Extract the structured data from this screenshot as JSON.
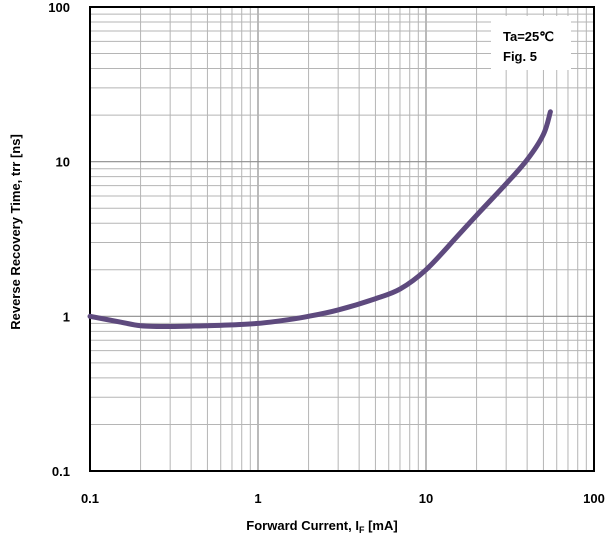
{
  "chart_data": {
    "type": "line",
    "title": "",
    "xlabel": "Forward Current, I",
    "xlabel_sub": "F",
    "xlabel_unit": " [mA]",
    "ylabel": "Reverse Recovery Time, trr [ns]",
    "xscale": "log",
    "yscale": "log",
    "xlim": [
      0.1,
      100
    ],
    "ylim": [
      0.1,
      100
    ],
    "x_ticks": [
      {
        "value": 0.1,
        "label": "0.1"
      },
      {
        "value": 1,
        "label": "1"
      },
      {
        "value": 10,
        "label": "10"
      },
      {
        "value": 100,
        "label": "100"
      }
    ],
    "y_ticks": [
      {
        "value": 0.1,
        "label": "0.1"
      },
      {
        "value": 1,
        "label": "1"
      },
      {
        "value": 10,
        "label": "10"
      },
      {
        "value": 100,
        "label": "100"
      }
    ],
    "grid": true,
    "annotation_lines": [
      "Ta=25℃",
      "Fig. 5"
    ],
    "series": [
      {
        "color": "#5e4a7e",
        "x": [
          0.1,
          0.15,
          0.2,
          0.3,
          0.5,
          0.7,
          1,
          1.5,
          2,
          3,
          5,
          7,
          10,
          15,
          20,
          30,
          40,
          50,
          55
        ],
        "y": [
          1.0,
          0.92,
          0.87,
          0.86,
          0.87,
          0.88,
          0.9,
          0.95,
          1.0,
          1.1,
          1.3,
          1.5,
          2.0,
          3.2,
          4.5,
          7.2,
          10.3,
          15.0,
          21.0
        ]
      }
    ]
  }
}
